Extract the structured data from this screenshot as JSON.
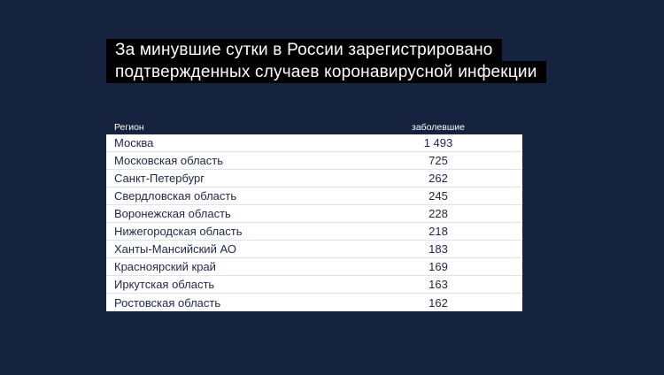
{
  "title": {
    "line1": "За минувшие сутки в России зарегистрировано",
    "line2": "подтвержденных случаев коронавирусной инфекции"
  },
  "table": {
    "headers": {
      "region": "Регион",
      "cases": "заболевшие"
    },
    "rows": [
      {
        "region": "Москва",
        "cases": "1 493"
      },
      {
        "region": "Московская область",
        "cases": "725"
      },
      {
        "region": "Санкт-Петербург",
        "cases": "262"
      },
      {
        "region": "Свердловская область",
        "cases": "245"
      },
      {
        "region": "Воронежская область",
        "cases": "228"
      },
      {
        "region": "Нижегородская область",
        "cases": "218"
      },
      {
        "region": "Ханты-Мансийский АО",
        "cases": "183"
      },
      {
        "region": "Красноярский край",
        "cases": "169"
      },
      {
        "region": "Иркутская область",
        "cases": "163"
      },
      {
        "region": "Ростовская область",
        "cases": "162"
      }
    ]
  },
  "colors": {
    "background": "#16233e",
    "title_background": "#000000",
    "title_text": "#ffffff",
    "table_background": "#ffffff",
    "table_text": "#1c2742",
    "row_border": "#dfe2e8"
  },
  "chart_data": {
    "type": "table",
    "title": "За минувшие сутки в России зарегистрировано подтвержденных случаев коронавирусной инфекции",
    "columns": [
      "Регион",
      "заболевшие"
    ],
    "rows": [
      [
        "Москва",
        1493
      ],
      [
        "Московская область",
        725
      ],
      [
        "Санкт-Петербург",
        262
      ],
      [
        "Свердловская область",
        245
      ],
      [
        "Воронежская область",
        228
      ],
      [
        "Нижегородская область",
        218
      ],
      [
        "Ханты-Мансийский АО",
        183
      ],
      [
        "Красноярский край",
        169
      ],
      [
        "Иркутская область",
        163
      ],
      [
        "Ростовская область",
        162
      ]
    ]
  }
}
